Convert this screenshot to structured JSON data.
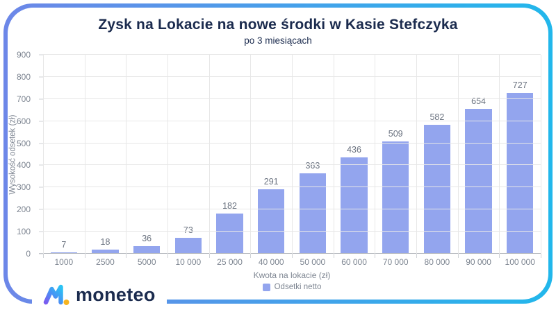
{
  "page": {
    "title": "Zysk na Lokacie na nowe środki w Kasie Stefczyka",
    "subtitle": "po 3 miesiącach"
  },
  "chart_data": {
    "type": "bar",
    "title": "Zysk na Lokacie na nowe środki w Kasie Stefczyka",
    "subtitle": "po 3 miesiącach",
    "categories": [
      "1000",
      "2500",
      "5000",
      "10 000",
      "25 000",
      "40 000",
      "50 000",
      "60 000",
      "70 000",
      "80 000",
      "90 000",
      "100 000"
    ],
    "values": [
      7,
      18,
      36,
      73,
      182,
      291,
      363,
      436,
      509,
      582,
      654,
      727
    ],
    "series_name": "Odsetki netto",
    "xlabel": "Kwota na lokacie (zł)",
    "ylabel": "Wysokość odsetek (zł)",
    "ylim": [
      0,
      900
    ],
    "ytick_step": 100,
    "grid": true,
    "legend_position": "bottom",
    "data_labels": true
  },
  "legend": {
    "label": "Odsetki netto"
  },
  "logo": {
    "text": "moneteo"
  },
  "colors": {
    "border_gradient_left": "#6d87e8",
    "border_gradient_right": "#22b7eb",
    "title_text": "#1b2b4e",
    "axis_text": "#7d8591",
    "value_text": "#6b7380",
    "bar": "#93a5ee",
    "grid": "#e7e7e7",
    "baseline": "#b3b7bd",
    "logo_dot": "#f6b421"
  }
}
